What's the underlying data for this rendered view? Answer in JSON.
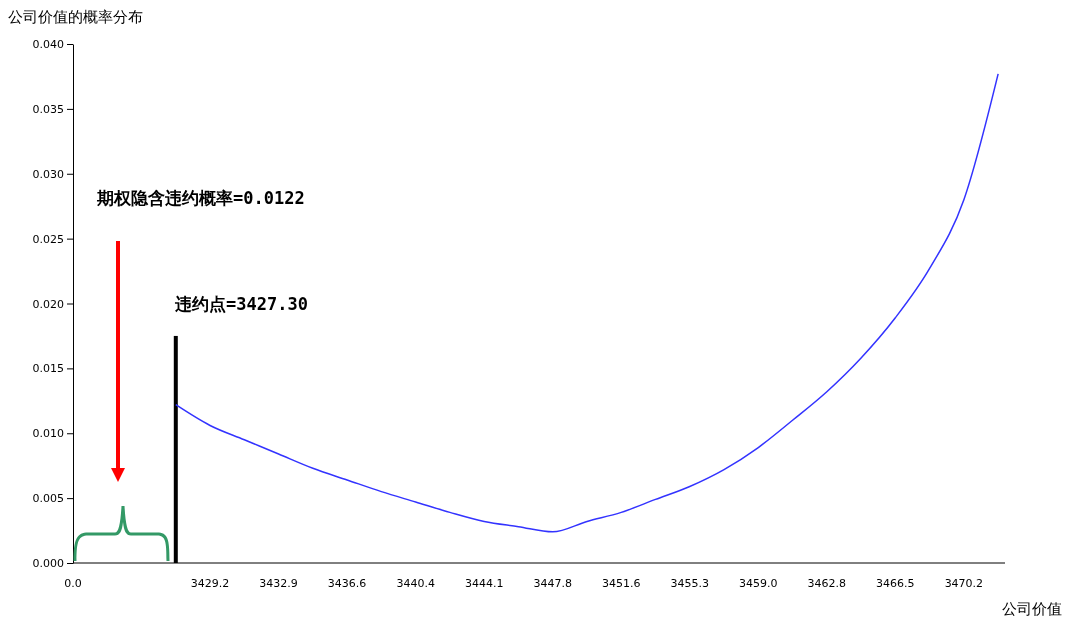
{
  "chart_data": {
    "type": "line",
    "ylabel": "公司价值的概率分布",
    "xlabel": "公司价值",
    "categories": [
      "0.0",
      null,
      null,
      null,
      "3429.2",
      null,
      "3432.9",
      null,
      "3436.6",
      null,
      "3440.4",
      null,
      "3444.1",
      null,
      "3447.8",
      null,
      "3451.6",
      null,
      "3455.3",
      null,
      "3459.0",
      null,
      "3462.8",
      null,
      "3466.5",
      null,
      "3470.2",
      null
    ],
    "series": [
      {
        "type": "bar",
        "color": "#000000",
        "values": [
          null,
          null,
          null,
          0.0175,
          null,
          null,
          null,
          null,
          null,
          null,
          null,
          null,
          null,
          null,
          null,
          null,
          null,
          null,
          null,
          null,
          null,
          null,
          null,
          null,
          null,
          null,
          null,
          null
        ]
      },
      {
        "color": "#3333ff",
        "values": [
          null,
          null,
          null,
          0.0122,
          0.0106,
          0.0095,
          0.0084,
          0.0073,
          0.0064,
          0.0055,
          0.0047,
          0.0039,
          0.0032,
          0.0028,
          0.0024,
          0.0032,
          0.0039,
          0.0049,
          0.0059,
          0.0072,
          0.0089,
          0.011,
          0.0132,
          0.0158,
          0.0189,
          0.0227,
          0.028,
          0.0377
        ]
      }
    ],
    "ylim": [
      0,
      0.04
    ],
    "yticks": [
      {
        "value": 0,
        "label": "0.000"
      },
      {
        "value": 0.005,
        "label": "0.005"
      },
      {
        "value": 0.01,
        "label": "0.010"
      },
      {
        "value": 0.015,
        "label": "0.015"
      },
      {
        "value": 0.02,
        "label": "0.020"
      },
      {
        "value": 0.025,
        "label": "0.025"
      },
      {
        "value": 0.03,
        "label": "0.030"
      },
      {
        "value": 0.035,
        "label": "0.035"
      },
      {
        "value": 0.04,
        "label": "0.040"
      }
    ],
    "grid": false,
    "marker": "none",
    "line_style": "solid",
    "annotations": [
      "期权隐含违约概率=0.0122",
      "违约点=3427.30"
    ]
  }
}
